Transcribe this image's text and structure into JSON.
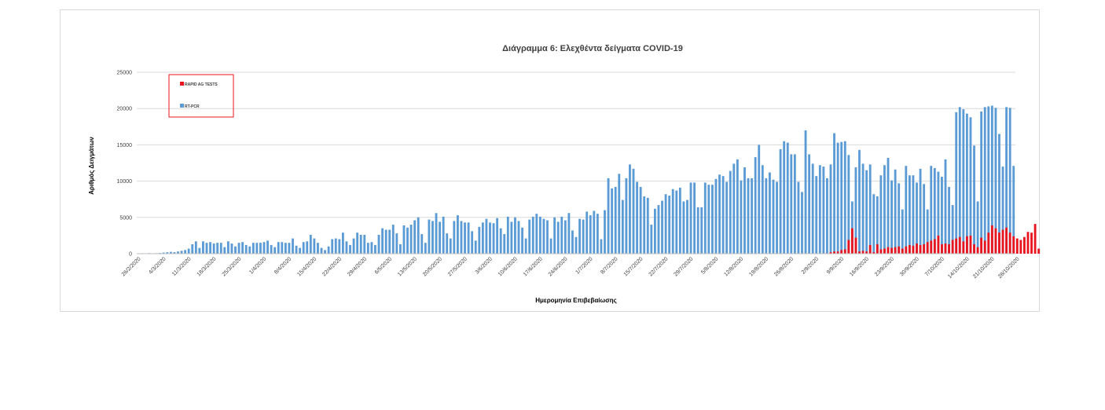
{
  "chart_data": {
    "type": "bar",
    "title": "Διάγραμμα 6: Ελεχθέντα δείγματα COVID-19",
    "xlabel": "Ημερομηνία  Επιβεβαίωσης",
    "ylabel": "Αριθμός Δειγμάτων",
    "ylim": [
      0,
      25000
    ],
    "yticks": [
      0,
      5000,
      10000,
      15000,
      20000,
      25000
    ],
    "grid": true,
    "legend_position": "top-left",
    "x_tick_labels": [
      "26/2/2020",
      "4/3/2020",
      "11/3/2020",
      "18/3/2020",
      "25/3/2020",
      "1/4/2020",
      "8/4/2020",
      "15/4/2020",
      "22/4/2020",
      "29/4/2020",
      "6/5/2020",
      "13/5/2020",
      "20/5/2020",
      "27/5/2020",
      "3/6/2020",
      "10/6/2020",
      "17/6/2020",
      "24/6/2020",
      "1/7/2020",
      "8/7/2020",
      "15/7/2020",
      "22/7/2020",
      "29/7/2020",
      "5/8/2020",
      "12/8/2020",
      "19/8/2020",
      "26/8/2020",
      "2/9/2020",
      "9/9/2020",
      "16/9/2020",
      "23/9/2020",
      "30/9/2020",
      "7/10/2020",
      "14/10/2020",
      "21/10/2020",
      "28/10/2020"
    ],
    "start_date": "26/2/2020",
    "series": [
      {
        "name": "RT-PCR",
        "color": "#5b9bd5",
        "values": [
          50,
          60,
          40,
          80,
          50,
          70,
          100,
          150,
          200,
          250,
          200,
          300,
          400,
          500,
          700,
          1300,
          1700,
          800,
          1700,
          1500,
          1600,
          1400,
          1500,
          1500,
          900,
          1700,
          1400,
          1000,
          1500,
          1600,
          1200,
          1000,
          1500,
          1500,
          1500,
          1600,
          1800,
          1200,
          900,
          1600,
          1600,
          1500,
          1500,
          2100,
          1100,
          800,
          1600,
          1700,
          2600,
          2100,
          1500,
          800,
          500,
          1000,
          2000,
          2100,
          2000,
          2900,
          1700,
          1200,
          2100,
          2900,
          2600,
          2600,
          1500,
          1600,
          1200,
          2600,
          3500,
          3300,
          3300,
          4000,
          2800,
          1300,
          3900,
          3600,
          4000,
          4600,
          5000,
          2700,
          1500,
          4700,
          4500,
          5600,
          4400,
          5100,
          2800,
          2100,
          4500,
          5300,
          4500,
          4300,
          4300,
          3100,
          1800,
          3700,
          4300,
          4800,
          4300,
          4200,
          4900,
          3500,
          2700,
          5100,
          4400,
          5000,
          4500,
          3600,
          2100,
          4700,
          5100,
          5500,
          5100,
          4800,
          4600,
          2100,
          5000,
          4400,
          5100,
          4600,
          5600,
          3200,
          2300,
          4800,
          4700,
          5800,
          5300,
          5900,
          5500,
          2000,
          6000,
          10400,
          9000,
          9200,
          11000,
          7400,
          10400,
          12300,
          11700,
          9900,
          9200,
          7900,
          7700,
          4000,
          6200,
          6700,
          7300,
          8200,
          8000,
          8900,
          8700,
          9100,
          7200,
          7400,
          9800,
          9800,
          6400,
          6400,
          9800,
          9500,
          9500,
          10300,
          10900,
          10700,
          9900,
          11400,
          12400,
          13000,
          10100,
          11900,
          10400,
          10400,
          13300,
          15000,
          12200,
          10400,
          11200,
          10200,
          9900,
          14400,
          15500,
          15300,
          13700,
          13700,
          9900,
          8500,
          17000,
          13700,
          12400,
          10700,
          12200,
          12000,
          10400,
          12300,
          16600,
          15300,
          15400,
          15500,
          13600,
          7200,
          11900,
          14300,
          12400,
          11500,
          12300,
          8200,
          7900,
          10800,
          12200,
          13200,
          10100,
          11600,
          9700,
          6100,
          12100,
          10800,
          10800,
          9800,
          11700,
          9600,
          6100,
          12100,
          11800,
          11300,
          10600,
          13000,
          9200,
          6700,
          19500,
          20200,
          19900,
          19300,
          18800,
          14900,
          7200,
          19600,
          20200,
          20300,
          20400,
          20100,
          16500,
          12000,
          20200,
          20100,
          12100
        ],
        "values_start_index": 0
      },
      {
        "name": "RAPID AG TESTS",
        "color": "#e8141e",
        "values": [
          200,
          300,
          300,
          500,
          600,
          1900,
          3500,
          2200,
          300,
          400,
          300,
          1200,
          200,
          1300,
          600,
          700,
          900,
          800,
          900,
          1000,
          700,
          1000,
          1200,
          1100,
          1400,
          1200,
          1300,
          1600,
          1800,
          2000,
          2500,
          1300,
          1400,
          1300,
          1900,
          2100,
          2300,
          1700,
          2400,
          2500,
          1300,
          900,
          2200,
          1800,
          2900,
          3900,
          3500,
          2900,
          3300,
          3600,
          2900,
          2400,
          2100,
          1900,
          2300,
          3000,
          2900,
          4100,
          700
        ],
        "values_start_index": 193
      }
    ]
  }
}
